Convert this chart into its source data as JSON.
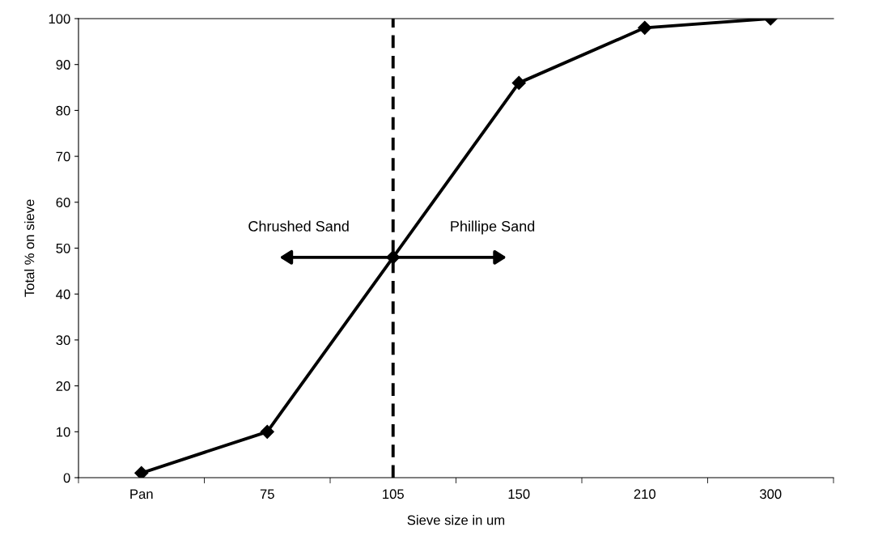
{
  "chart_data": {
    "type": "line",
    "xlabel": "Sieve size in um",
    "ylabel": "Total % on sieve",
    "categories": [
      "Pan",
      "75",
      "105",
      "150",
      "210",
      "300"
    ],
    "series": [
      {
        "color": "#000000",
        "values": [
          1,
          10,
          48,
          86,
          98,
          100
        ]
      }
    ],
    "ylim": [
      0,
      100
    ],
    "yticks": [
      0,
      10,
      20,
      30,
      40,
      50,
      60,
      70,
      80,
      90,
      100
    ],
    "marker": "diamond",
    "line_style": "solid",
    "grid": false,
    "legend": false,
    "ref_lines": [
      {
        "axis": "x",
        "value": "105",
        "line_style": "dashed",
        "color": "#000000"
      }
    ],
    "annotations": [
      "Chrushed Sand",
      "Phillipe Sand"
    ]
  }
}
